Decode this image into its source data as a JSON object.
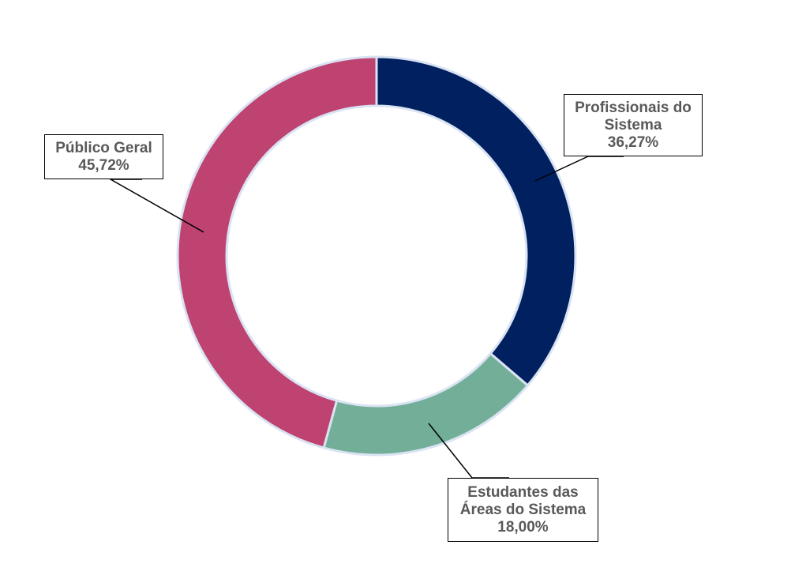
{
  "chart_data": {
    "type": "pie",
    "variant": "donut",
    "start": "top",
    "direction": "clockwise",
    "slices": [
      {
        "label_lines": [
          "Profissionais do",
          "Sistema"
        ],
        "value": 36.27,
        "value_label": "36,27%",
        "color": "#002060"
      },
      {
        "label_lines": [
          "Estudantes das",
          "Áreas do Sistema"
        ],
        "value": 18.0,
        "value_label": "18,00%",
        "color": "#73AF98"
      },
      {
        "label_lines": [
          "Público Geral"
        ],
        "value": 45.72,
        "value_label": "45,72%",
        "color": "#BE4370"
      }
    ],
    "slice_border_color": "#DAE3F3",
    "label_style": "callout-boxes"
  }
}
